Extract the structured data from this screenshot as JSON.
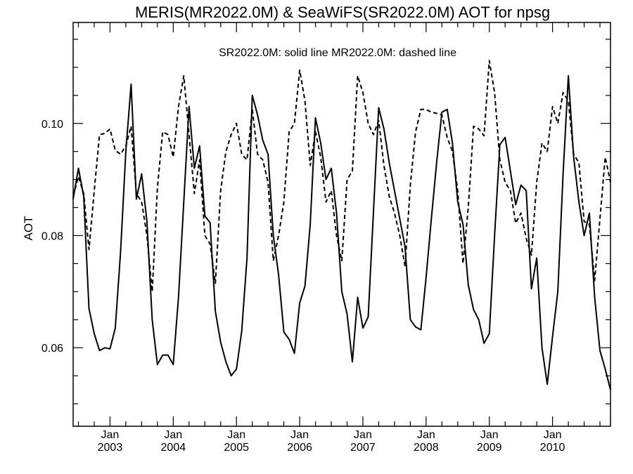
{
  "chart_data": {
    "type": "line",
    "title": "MERIS(MR2022.0M) & SeaWiFS(SR2022.0M)  AOT for npsg",
    "annotation": "SR2022.0M: solid line   MR2022.0M: dashed line",
    "xlabel": "",
    "ylabel": "AOT",
    "x_ticks": [
      {
        "date": "2003-01",
        "line1": "Jan",
        "line2": "2003"
      },
      {
        "date": "2004-01",
        "line1": "Jan",
        "line2": "2004"
      },
      {
        "date": "2005-01",
        "line1": "Jan",
        "line2": "2005"
      },
      {
        "date": "2006-01",
        "line1": "Jan",
        "line2": "2006"
      },
      {
        "date": "2007-01",
        "line1": "Jan",
        "line2": "2007"
      },
      {
        "date": "2008-01",
        "line1": "Jan",
        "line2": "2008"
      },
      {
        "date": "2009-01",
        "line1": "Jan",
        "line2": "2009"
      },
      {
        "date": "2010-01",
        "line1": "Jan",
        "line2": "2010"
      }
    ],
    "xlim": [
      "2002-06",
      "2010-12"
    ],
    "ylim": [
      0.046,
      0.118
    ],
    "y_ticks": [
      0.06,
      0.08,
      0.1
    ],
    "y_tick_labels": [
      "0.06",
      "0.08",
      "0.10"
    ],
    "grid": false,
    "series": [
      {
        "name": "SR2022.0M",
        "style": "solid",
        "color": "#000000",
        "points": [
          [
            "2002-06",
            0.0865
          ],
          [
            "2002-07",
            0.092
          ],
          [
            "2002-08",
            0.087
          ],
          [
            "2002-09",
            0.067
          ],
          [
            "2002-10",
            0.0625
          ],
          [
            "2002-11",
            0.0595
          ],
          [
            "2002-12",
            0.06
          ],
          [
            "2003-01",
            0.0598
          ],
          [
            "2003-02",
            0.0635
          ],
          [
            "2003-03",
            0.077
          ],
          [
            "2003-04",
            0.095
          ],
          [
            "2003-05",
            0.107
          ],
          [
            "2003-06",
            0.0865
          ],
          [
            "2003-07",
            0.091
          ],
          [
            "2003-08",
            0.0825
          ],
          [
            "2003-09",
            0.065
          ],
          [
            "2003-10",
            0.057
          ],
          [
            "2003-11",
            0.0587
          ],
          [
            "2003-12",
            0.0587
          ],
          [
            "2004-01",
            0.057
          ],
          [
            "2004-02",
            0.069
          ],
          [
            "2004-03",
            0.086
          ],
          [
            "2004-04",
            0.103
          ],
          [
            "2004-05",
            0.092
          ],
          [
            "2004-06",
            0.096
          ],
          [
            "2004-07",
            0.0835
          ],
          [
            "2004-08",
            0.0823
          ],
          [
            "2004-09",
            0.0665
          ],
          [
            "2004-10",
            0.061
          ],
          [
            "2004-11",
            0.0575
          ],
          [
            "2004-12",
            0.055
          ],
          [
            "2005-01",
            0.0562
          ],
          [
            "2005-02",
            0.063
          ],
          [
            "2005-03",
            0.076
          ],
          [
            "2005-04",
            0.105
          ],
          [
            "2005-05",
            0.1015
          ],
          [
            "2005-06",
            0.097
          ],
          [
            "2005-07",
            0.0945
          ],
          [
            "2005-08",
            0.08
          ],
          [
            "2005-09",
            0.073
          ],
          [
            "2005-10",
            0.0628
          ],
          [
            "2005-11",
            0.0615
          ],
          [
            "2005-12",
            0.059
          ],
          [
            "2006-01",
            0.068
          ],
          [
            "2006-02",
            0.071
          ],
          [
            "2006-03",
            0.082
          ],
          [
            "2006-04",
            0.101
          ],
          [
            "2006-05",
            0.0965
          ],
          [
            "2006-06",
            0.09
          ],
          [
            "2006-07",
            0.092
          ],
          [
            "2006-08",
            0.084
          ],
          [
            "2006-09",
            0.07
          ],
          [
            "2006-10",
            0.066
          ],
          [
            "2006-11",
            0.0575
          ],
          [
            "2006-12",
            0.069
          ],
          [
            "2007-01",
            0.0635
          ],
          [
            "2007-02",
            0.0655
          ],
          [
            "2007-03",
            0.084
          ],
          [
            "2007-04",
            0.1028
          ],
          [
            "2007-05",
            0.099
          ],
          [
            "2007-06",
            0.093
          ],
          [
            "2007-07",
            0.088
          ],
          [
            "2007-08",
            0.083
          ],
          [
            "2007-09",
            0.078
          ],
          [
            "2007-10",
            0.065
          ],
          [
            "2007-11",
            0.0637
          ],
          [
            "2007-12",
            0.0632
          ],
          [
            "2008-01",
            0.0725
          ],
          [
            "2008-02",
            0.083
          ],
          [
            "2008-03",
            0.093
          ],
          [
            "2008-04",
            0.102
          ],
          [
            "2008-05",
            0.1025
          ],
          [
            "2008-06",
            0.0965
          ],
          [
            "2008-07",
            0.086
          ],
          [
            "2008-08",
            0.082
          ],
          [
            "2008-09",
            0.0712
          ],
          [
            "2008-10",
            0.0668
          ],
          [
            "2008-11",
            0.065
          ],
          [
            "2008-12",
            0.0608
          ],
          [
            "2009-01",
            0.0625
          ],
          [
            "2009-02",
            0.08
          ],
          [
            "2009-03",
            0.0962
          ],
          [
            "2009-04",
            0.0975
          ],
          [
            "2009-05",
            0.0915
          ],
          [
            "2009-06",
            0.0855
          ],
          [
            "2009-07",
            0.089
          ],
          [
            "2009-08",
            0.088
          ],
          [
            "2009-09",
            0.0705
          ],
          [
            "2009-10",
            0.076
          ],
          [
            "2009-11",
            0.06
          ],
          [
            "2009-12",
            0.0535
          ],
          [
            "2010-01",
            0.062
          ],
          [
            "2010-02",
            0.07
          ],
          [
            "2010-03",
            0.091
          ],
          [
            "2010-04",
            0.1085
          ],
          [
            "2010-05",
            0.094
          ],
          [
            "2010-06",
            0.086
          ],
          [
            "2010-07",
            0.08
          ],
          [
            "2010-08",
            0.084
          ],
          [
            "2010-09",
            0.069
          ],
          [
            "2010-10",
            0.0595
          ],
          [
            "2010-11",
            0.0562
          ],
          [
            "2010-12",
            0.0525
          ]
        ]
      },
      {
        "name": "MR2022.0M",
        "style": "dashed",
        "color": "#000000",
        "points": [
          [
            "2002-06",
            0.087
          ],
          [
            "2002-07",
            0.0905
          ],
          [
            "2002-08",
            0.0875
          ],
          [
            "2002-09",
            0.0775
          ],
          [
            "2002-10",
            0.088
          ],
          [
            "2002-11",
            0.098
          ],
          [
            "2002-12",
            0.0982
          ],
          [
            "2003-01",
            0.099
          ],
          [
            "2003-02",
            0.0952
          ],
          [
            "2003-03",
            0.0945
          ],
          [
            "2003-04",
            0.096
          ],
          [
            "2003-05",
            0.0995
          ],
          [
            "2003-06",
            0.0875
          ],
          [
            "2003-07",
            0.086
          ],
          [
            "2003-08",
            0.08
          ],
          [
            "2003-09",
            0.07
          ],
          [
            "2003-10",
            0.0885
          ],
          [
            "2003-11",
            0.0985
          ],
          [
            "2003-12",
            0.098
          ],
          [
            "2004-01",
            0.094
          ],
          [
            "2004-02",
            0.103
          ],
          [
            "2004-03",
            0.1085
          ],
          [
            "2004-04",
            0.098
          ],
          [
            "2004-05",
            0.0875
          ],
          [
            "2004-06",
            0.0935
          ],
          [
            "2004-07",
            0.08
          ],
          [
            "2004-08",
            0.0785
          ],
          [
            "2004-09",
            0.0715
          ],
          [
            "2004-10",
            0.088
          ],
          [
            "2004-11",
            0.095
          ],
          [
            "2004-12",
            0.098
          ],
          [
            "2005-01",
            0.1
          ],
          [
            "2005-02",
            0.0945
          ],
          [
            "2005-03",
            0.0935
          ],
          [
            "2005-04",
            0.1025
          ],
          [
            "2005-05",
            0.0945
          ],
          [
            "2005-06",
            0.0935
          ],
          [
            "2005-07",
            0.0895
          ],
          [
            "2005-08",
            0.0755
          ],
          [
            "2005-09",
            0.08
          ],
          [
            "2005-10",
            0.086
          ],
          [
            "2005-11",
            0.0985
          ],
          [
            "2005-12",
            0.1
          ],
          [
            "2006-01",
            0.1095
          ],
          [
            "2006-02",
            0.104
          ],
          [
            "2006-03",
            0.0925
          ],
          [
            "2006-04",
            0.0985
          ],
          [
            "2006-05",
            0.094
          ],
          [
            "2006-06",
            0.086
          ],
          [
            "2006-07",
            0.088
          ],
          [
            "2006-08",
            0.08
          ],
          [
            "2006-09",
            0.0755
          ],
          [
            "2006-10",
            0.09
          ],
          [
            "2006-11",
            0.0915
          ],
          [
            "2006-12",
            0.1085
          ],
          [
            "2007-01",
            0.1055
          ],
          [
            "2007-02",
            0.1
          ],
          [
            "2007-03",
            0.098
          ],
          [
            "2007-04",
            0.1005
          ],
          [
            "2007-05",
            0.0925
          ],
          [
            "2007-06",
            0.087
          ],
          [
            "2007-07",
            0.084
          ],
          [
            "2007-08",
            0.08
          ],
          [
            "2007-09",
            0.0745
          ],
          [
            "2007-10",
            0.089
          ],
          [
            "2007-11",
            0.0985
          ],
          [
            "2007-12",
            0.1025
          ],
          [
            "2008-01",
            0.1025
          ],
          [
            "2008-02",
            0.102
          ],
          [
            "2008-03",
            0.1018
          ],
          [
            "2008-04",
            0.1015
          ],
          [
            "2008-05",
            0.0975
          ],
          [
            "2008-06",
            0.095
          ],
          [
            "2008-07",
            0.088
          ],
          [
            "2008-08",
            0.075
          ],
          [
            "2008-09",
            0.085
          ],
          [
            "2008-10",
            0.0995
          ],
          [
            "2008-11",
            0.099
          ],
          [
            "2008-12",
            0.0978
          ],
          [
            "2009-01",
            0.1112
          ],
          [
            "2009-02",
            0.1055
          ],
          [
            "2009-03",
            0.0935
          ],
          [
            "2009-04",
            0.0895
          ],
          [
            "2009-05",
            0.088
          ],
          [
            "2009-06",
            0.0822
          ],
          [
            "2009-07",
            0.084
          ],
          [
            "2009-08",
            0.0795
          ],
          [
            "2009-09",
            0.0765
          ],
          [
            "2009-10",
            0.0895
          ],
          [
            "2009-11",
            0.0965
          ],
          [
            "2009-12",
            0.095
          ],
          [
            "2010-01",
            0.103
          ],
          [
            "2010-02",
            0.1
          ],
          [
            "2010-03",
            0.1055
          ],
          [
            "2010-04",
            0.104
          ],
          [
            "2010-05",
            0.0945
          ],
          [
            "2010-06",
            0.093
          ],
          [
            "2010-07",
            0.0825
          ],
          [
            "2010-08",
            0.082
          ],
          [
            "2010-09",
            0.072
          ],
          [
            "2010-10",
            0.083
          ],
          [
            "2010-11",
            0.094
          ],
          [
            "2010-12",
            0.0895
          ]
        ]
      }
    ]
  }
}
